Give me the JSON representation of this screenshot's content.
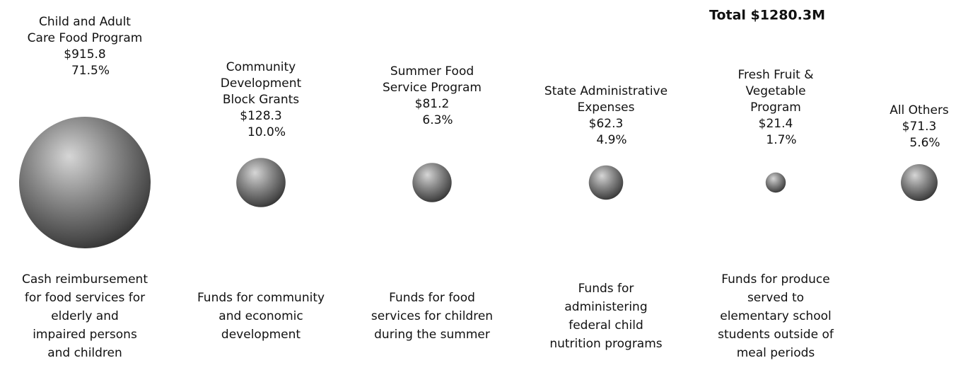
{
  "chart_data": {
    "type": "bubble",
    "title": "Total $1280.3M",
    "categories": [
      [
        "Child and Adult",
        "Care Food Program"
      ],
      [
        "Community",
        "Development",
        "Block Grants"
      ],
      [
        "Summer Food",
        "Service Program"
      ],
      [
        "State Administrative",
        "Expenses"
      ],
      [
        "Fresh Fruit &",
        "Vegetable",
        "Program"
      ],
      [
        "All Others"
      ]
    ],
    "values": [
      915.8,
      128.3,
      81.2,
      62.3,
      21.4,
      71.3
    ],
    "value_labels": [
      "$915.8",
      "$128.3",
      "$81.2",
      "$62.3",
      "$21.4",
      "$71.3"
    ],
    "shares": [
      71.5,
      10.0,
      6.3,
      4.9,
      1.7,
      5.6
    ],
    "share_labels": [
      "71.5%",
      "10.0%",
      "6.3%",
      "4.9%",
      "1.7%",
      "5.6%"
    ],
    "descriptions": [
      [
        "Cash reimbursement",
        "for food services for",
        "elderly and",
        "impaired persons",
        "and children"
      ],
      [
        "Funds for community",
        "and economic",
        "development"
      ],
      [
        "Funds for food",
        "services for children",
        "during the summer"
      ],
      [
        "Funds for",
        "administering",
        "federal child",
        "nutrition programs"
      ],
      [
        "Funds for produce",
        "served to",
        "elementary school",
        "students outside of",
        "meal periods"
      ],
      []
    ]
  }
}
